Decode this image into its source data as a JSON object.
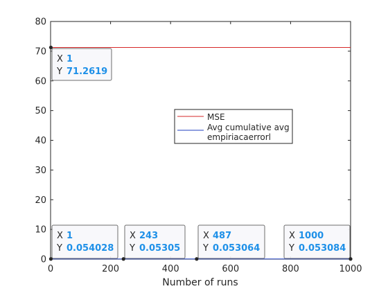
{
  "chart_data": {
    "type": "line",
    "xlabel": "Number of runs",
    "ylabel": "",
    "title": "",
    "xlim": [
      0,
      1000
    ],
    "ylim": [
      0,
      80
    ],
    "xticks": [
      0,
      200,
      400,
      600,
      800,
      1000
    ],
    "yticks": [
      0,
      10,
      20,
      30,
      40,
      50,
      60,
      70,
      80
    ],
    "grid": false,
    "legend_position": "center",
    "series": [
      {
        "name": "MSE",
        "color": "#d62728",
        "x": [
          1,
          1000
        ],
        "y": [
          71.2619,
          71.2619
        ]
      },
      {
        "name": "Avg cumulative avg empiriacaerrorl",
        "legend_lines": [
          "Avg cumulative avg",
          "empiriacaerrorl"
        ],
        "color": "#1f3fbf",
        "x": [
          1,
          243,
          487,
          1000
        ],
        "y": [
          0.054028,
          0.05305,
          0.053064,
          0.053084
        ]
      }
    ],
    "datatips": [
      {
        "x_label": "X",
        "y_label": "Y",
        "x": "1",
        "y": "71.2619"
      },
      {
        "x_label": "X",
        "y_label": "Y",
        "x": "1",
        "y": "0.054028"
      },
      {
        "x_label": "X",
        "y_label": "Y",
        "x": "243",
        "y": "0.05305"
      },
      {
        "x_label": "X",
        "y_label": "Y",
        "x": "487",
        "y": "0.053064"
      },
      {
        "x_label": "X",
        "y_label": "Y",
        "x": "1000",
        "y": "0.053084"
      }
    ],
    "colors": {
      "axis": "#262626",
      "datatip_value": "#1e90e8",
      "datatip_bg": "#f7f7fb"
    }
  }
}
